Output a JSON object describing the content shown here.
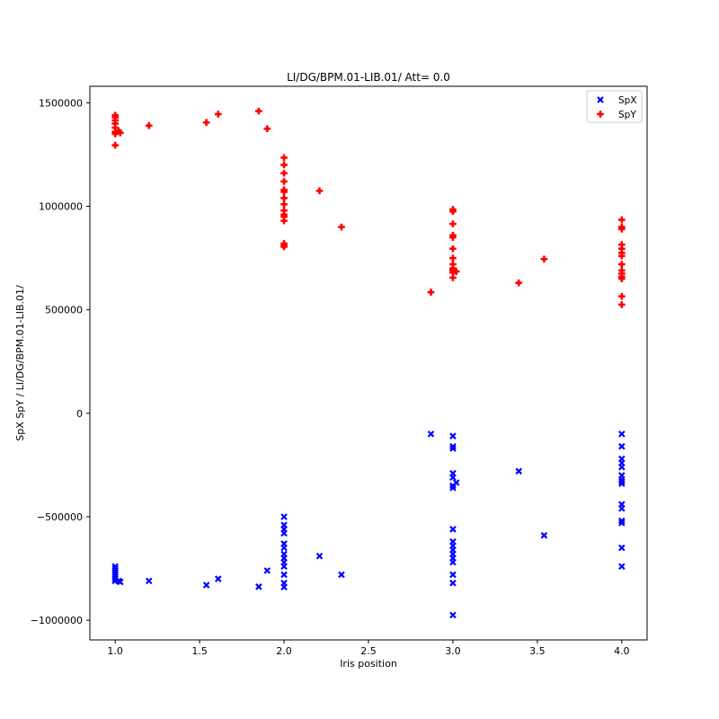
{
  "chart_data": {
    "type": "scatter",
    "title": "LI/DG/BPM.01-LIB.01/ Att= 0.0",
    "xlabel": "Iris position",
    "ylabel": "SpX SpY / LI/DG/BPM.01-LIB.01/",
    "xlim": [
      0.85,
      4.15
    ],
    "ylim": [
      -1095000,
      1580000
    ],
    "xticks": [
      1.0,
      1.5,
      2.0,
      2.5,
      3.0,
      3.5,
      4.0
    ],
    "xtick_labels": [
      "1.0",
      "1.5",
      "2.0",
      "2.5",
      "3.0",
      "3.5",
      "4.0"
    ],
    "yticks": [
      -1000000,
      -500000,
      0,
      500000,
      1000000,
      1500000
    ],
    "ytick_labels": [
      "−1000000",
      "−500000",
      "0",
      "500000",
      "1000000",
      "1500000"
    ],
    "grid": false,
    "legend_position": "top-right",
    "series": [
      {
        "name": "SpX",
        "color": "#0000ff",
        "marker": "x",
        "points": [
          [
            1.0,
            -740000
          ],
          [
            1.0,
            -750000
          ],
          [
            1.0,
            -760000
          ],
          [
            1.0,
            -770000
          ],
          [
            1.0,
            -780000
          ],
          [
            1.0,
            -790000
          ],
          [
            1.0,
            -800000
          ],
          [
            1.0,
            -810000
          ],
          [
            1.02,
            -810000
          ],
          [
            1.03,
            -815000
          ],
          [
            1.2,
            -810000
          ],
          [
            1.54,
            -830000
          ],
          [
            1.61,
            -800000
          ],
          [
            1.85,
            -838000
          ],
          [
            1.9,
            -760000
          ],
          [
            2.0,
            -500000
          ],
          [
            2.0,
            -540000
          ],
          [
            2.0,
            -560000
          ],
          [
            2.0,
            -580000
          ],
          [
            2.0,
            -630000
          ],
          [
            2.0,
            -650000
          ],
          [
            2.0,
            -680000
          ],
          [
            2.0,
            -700000
          ],
          [
            2.0,
            -720000
          ],
          [
            2.0,
            -740000
          ],
          [
            2.0,
            -780000
          ],
          [
            2.0,
            -820000
          ],
          [
            2.0,
            -840000
          ],
          [
            2.21,
            -690000
          ],
          [
            2.34,
            -780000
          ],
          [
            2.87,
            -100000
          ],
          [
            3.0,
            -110000
          ],
          [
            3.0,
            -160000
          ],
          [
            3.0,
            -170000
          ],
          [
            3.0,
            -290000
          ],
          [
            3.0,
            -310000
          ],
          [
            3.0,
            -350000
          ],
          [
            3.0,
            -360000
          ],
          [
            3.02,
            -335000
          ],
          [
            3.0,
            -560000
          ],
          [
            3.0,
            -620000
          ],
          [
            3.0,
            -640000
          ],
          [
            3.0,
            -660000
          ],
          [
            3.0,
            -680000
          ],
          [
            3.0,
            -700000
          ],
          [
            3.0,
            -720000
          ],
          [
            3.0,
            -780000
          ],
          [
            3.0,
            -820000
          ],
          [
            3.0,
            -975000
          ],
          [
            3.39,
            -280000
          ],
          [
            3.54,
            -590000
          ],
          [
            4.0,
            -100000
          ],
          [
            4.0,
            -160000
          ],
          [
            4.0,
            -220000
          ],
          [
            4.0,
            -240000
          ],
          [
            4.0,
            -260000
          ],
          [
            4.0,
            -300000
          ],
          [
            4.0,
            -320000
          ],
          [
            4.0,
            -330000
          ],
          [
            4.0,
            -340000
          ],
          [
            4.0,
            -440000
          ],
          [
            4.0,
            -460000
          ],
          [
            4.0,
            -520000
          ],
          [
            4.0,
            -530000
          ],
          [
            4.0,
            -650000
          ],
          [
            4.0,
            -740000
          ]
        ]
      },
      {
        "name": "SpY",
        "color": "#ff0000",
        "marker": "P",
        "points": [
          [
            1.0,
            1440000
          ],
          [
            1.0,
            1430000
          ],
          [
            1.0,
            1415000
          ],
          [
            1.0,
            1400000
          ],
          [
            1.0,
            1380000
          ],
          [
            1.0,
            1360000
          ],
          [
            1.0,
            1350000
          ],
          [
            1.0,
            1295000
          ],
          [
            1.02,
            1365000
          ],
          [
            1.03,
            1355000
          ],
          [
            1.2,
            1390000
          ],
          [
            1.54,
            1405000
          ],
          [
            1.61,
            1445000
          ],
          [
            1.85,
            1460000
          ],
          [
            1.9,
            1375000
          ],
          [
            2.0,
            1235000
          ],
          [
            2.0,
            1200000
          ],
          [
            2.0,
            1160000
          ],
          [
            2.0,
            1120000
          ],
          [
            2.0,
            1080000
          ],
          [
            2.0,
            1070000
          ],
          [
            2.0,
            1040000
          ],
          [
            2.0,
            1010000
          ],
          [
            2.0,
            980000
          ],
          [
            2.0,
            960000
          ],
          [
            2.0,
            950000
          ],
          [
            2.0,
            930000
          ],
          [
            2.0,
            820000
          ],
          [
            2.0,
            810000
          ],
          [
            2.0,
            805000
          ],
          [
            2.21,
            1075000
          ],
          [
            2.34,
            900000
          ],
          [
            2.87,
            585000
          ],
          [
            3.0,
            985000
          ],
          [
            3.0,
            975000
          ],
          [
            3.0,
            915000
          ],
          [
            3.0,
            860000
          ],
          [
            3.0,
            850000
          ],
          [
            3.0,
            795000
          ],
          [
            3.0,
            750000
          ],
          [
            3.0,
            720000
          ],
          [
            3.0,
            700000
          ],
          [
            3.0,
            690000
          ],
          [
            3.0,
            680000
          ],
          [
            3.0,
            655000
          ],
          [
            3.02,
            685000
          ],
          [
            3.39,
            630000
          ],
          [
            3.54,
            745000
          ],
          [
            4.0,
            935000
          ],
          [
            4.0,
            900000
          ],
          [
            4.0,
            890000
          ],
          [
            4.0,
            815000
          ],
          [
            4.0,
            795000
          ],
          [
            4.0,
            775000
          ],
          [
            4.0,
            760000
          ],
          [
            4.0,
            720000
          ],
          [
            4.0,
            690000
          ],
          [
            4.0,
            675000
          ],
          [
            4.0,
            660000
          ],
          [
            4.0,
            650000
          ],
          [
            4.0,
            565000
          ],
          [
            4.0,
            525000
          ]
        ]
      }
    ]
  }
}
